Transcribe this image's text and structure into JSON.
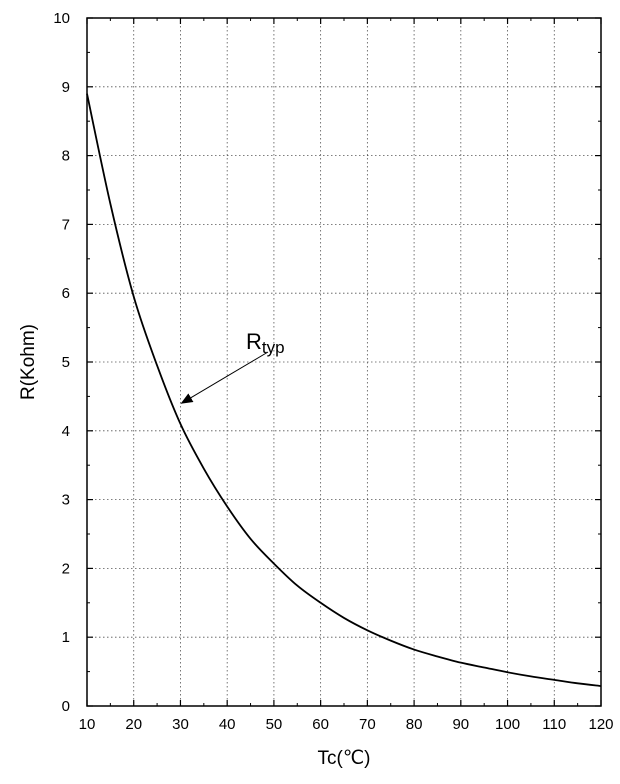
{
  "chart_data": {
    "type": "line",
    "title": "",
    "xlabel": "Tc(℃)",
    "ylabel": "R(Kohm)",
    "xlim": [
      10,
      120
    ],
    "ylim": [
      0,
      10
    ],
    "xticks": [
      10,
      20,
      30,
      40,
      50,
      60,
      70,
      80,
      90,
      100,
      110,
      120
    ],
    "yticks": [
      0,
      1,
      2,
      3,
      4,
      5,
      6,
      7,
      8,
      9,
      10
    ],
    "grid": true,
    "legend": "none",
    "series": [
      {
        "name": "Rtyp",
        "x": [
          10,
          15,
          20,
          25,
          30,
          35,
          40,
          45,
          50,
          55,
          60,
          65,
          70,
          75,
          80,
          85,
          90,
          95,
          100,
          105,
          110,
          115,
          120
        ],
        "y": [
          8.9,
          7.3,
          5.95,
          4.95,
          4.1,
          3.45,
          2.9,
          2.43,
          2.07,
          1.75,
          1.5,
          1.28,
          1.1,
          0.95,
          0.82,
          0.72,
          0.63,
          0.56,
          0.49,
          0.43,
          0.38,
          0.33,
          0.29
        ]
      }
    ],
    "annotation": {
      "text_main": "R",
      "text_sub": "typ",
      "points_to": {
        "x": 30,
        "y": 4.4
      }
    }
  }
}
